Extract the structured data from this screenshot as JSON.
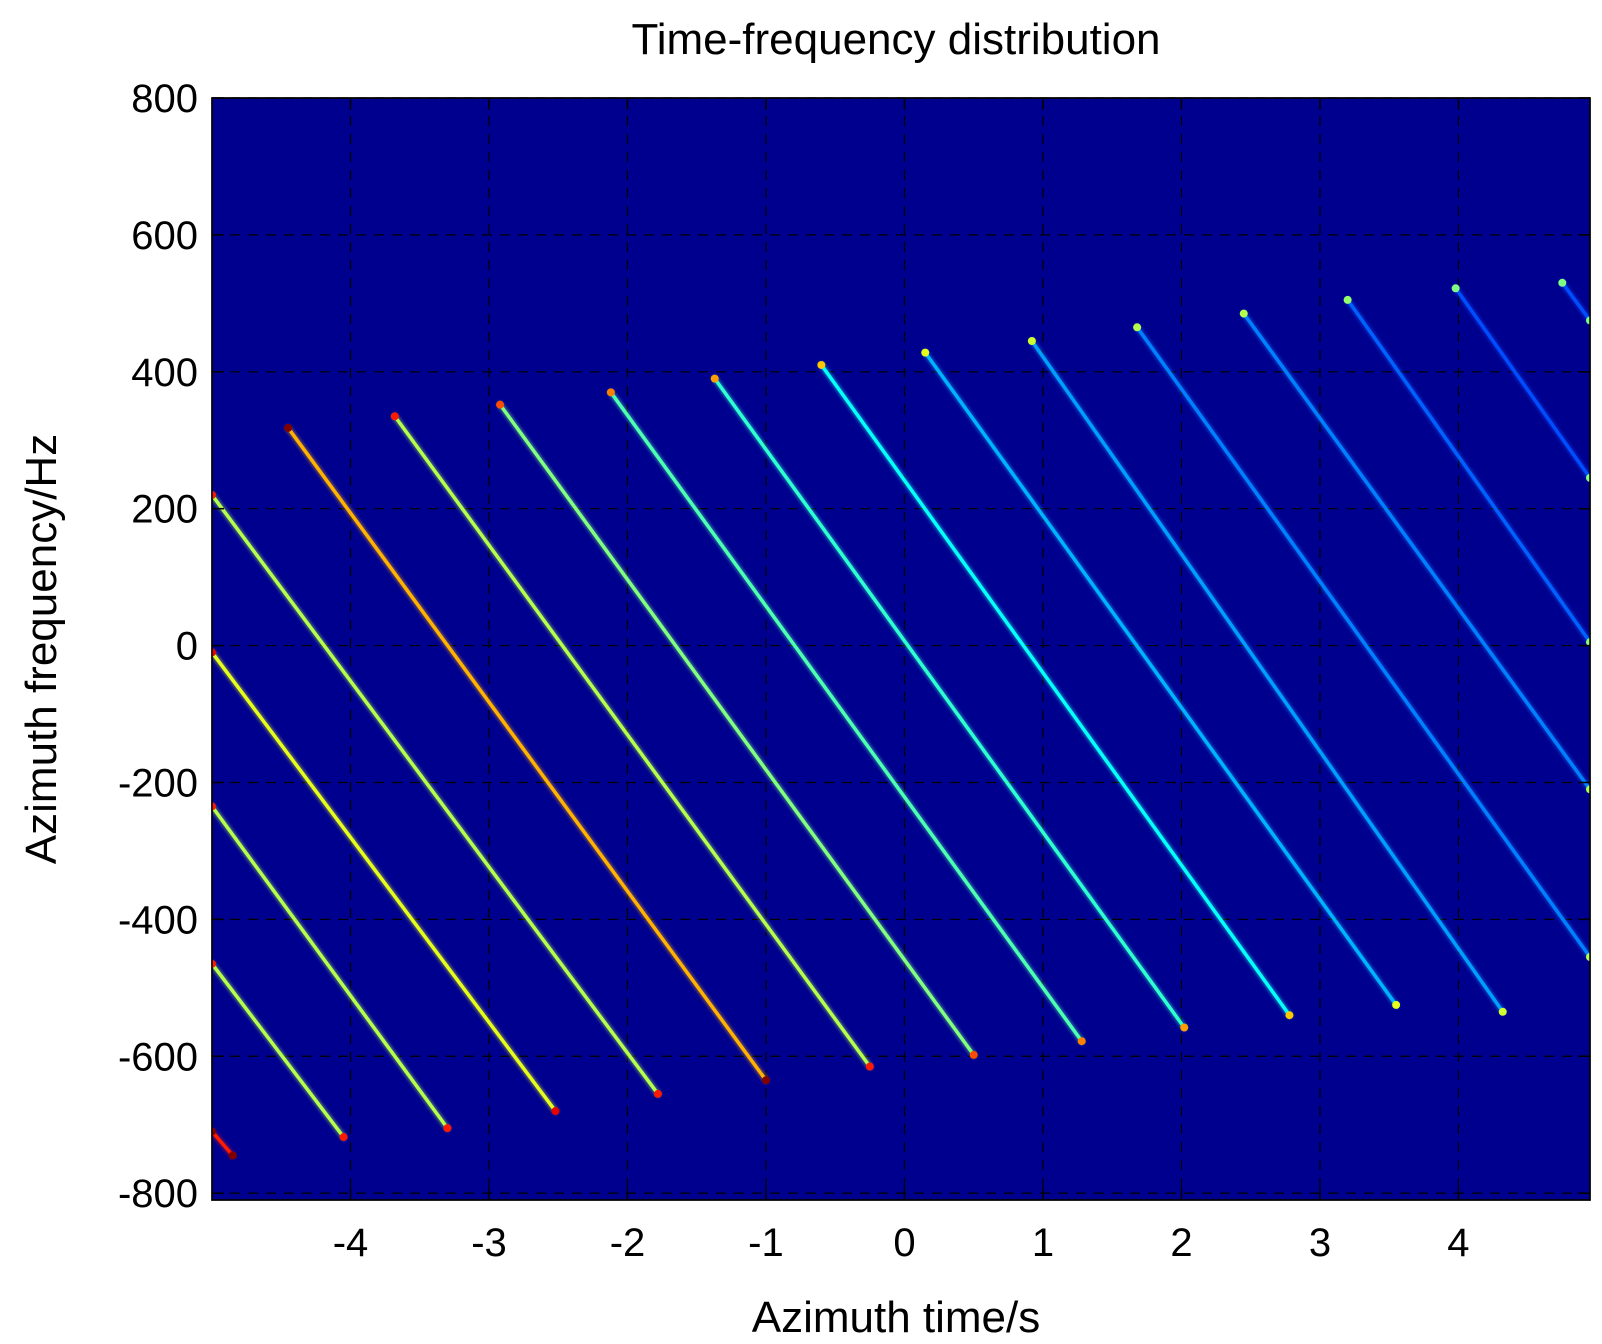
{
  "chart_data": {
    "type": "heatmap",
    "title": "Time-frequency distribution",
    "xlabel": "Azimuth time/s",
    "ylabel": "Azimuth frequency/Hz",
    "xlim": [
      -5,
      4.95
    ],
    "ylim": [
      -810,
      800
    ],
    "xticks": [
      -4,
      -3,
      -2,
      -1,
      0,
      1,
      2,
      3,
      4
    ],
    "yticks": [
      -800,
      -600,
      -400,
      -200,
      0,
      200,
      400,
      600,
      800
    ],
    "x_tick_labels": [
      "-4",
      "-3",
      "-2",
      "-1",
      "0",
      "1",
      "2",
      "3",
      "4"
    ],
    "y_tick_labels": [
      "-800",
      "-600",
      "-400",
      "-200",
      "0",
      "200",
      "400",
      "600",
      "800"
    ],
    "grid": true,
    "grid_style": "dashed",
    "background_color": "#00008f",
    "colormap": "jet",
    "series": [
      {
        "x": [
          -5.0,
          -4.85
        ],
        "y": [
          -710,
          -745
        ],
        "intensity": 0.85
      },
      {
        "x": [
          -5.0,
          -4.05
        ],
        "y": [
          -465,
          -718
        ],
        "intensity": 0.55
      },
      {
        "x": [
          -5.0,
          -3.3
        ],
        "y": [
          -235,
          -705
        ],
        "intensity": 0.55
      },
      {
        "x": [
          -5.0,
          -2.52
        ],
        "y": [
          -10,
          -680
        ],
        "intensity": 0.6
      },
      {
        "x": [
          -5.0,
          -1.78
        ],
        "y": [
          220,
          -655
        ],
        "intensity": 0.55
      },
      {
        "x": [
          -4.45,
          -1.0
        ],
        "y": [
          318,
          -635
        ],
        "intensity": 0.7
      },
      {
        "x": [
          -3.68,
          -0.25
        ],
        "y": [
          335,
          -615
        ],
        "intensity": 0.55
      },
      {
        "x": [
          -2.92,
          0.5
        ],
        "y": [
          352,
          -598
        ],
        "intensity": 0.5
      },
      {
        "x": [
          -2.12,
          1.28
        ],
        "y": [
          370,
          -578
        ],
        "intensity": 0.45
      },
      {
        "x": [
          -1.37,
          2.02
        ],
        "y": [
          390,
          -558
        ],
        "intensity": 0.42
      },
      {
        "x": [
          -0.6,
          2.78
        ],
        "y": [
          410,
          -540
        ],
        "intensity": 0.38
      },
      {
        "x": [
          0.15,
          3.55
        ],
        "y": [
          428,
          -525
        ],
        "intensity": 0.3
      },
      {
        "x": [
          0.92,
          4.32
        ],
        "y": [
          445,
          -535
        ],
        "intensity": 0.28
      },
      {
        "x": [
          1.68,
          4.95
        ],
        "y": [
          465,
          -455
        ],
        "intensity": 0.25
      },
      {
        "x": [
          2.45,
          4.95
        ],
        "y": [
          485,
          -210
        ],
        "intensity": 0.25
      },
      {
        "x": [
          3.2,
          4.95
        ],
        "y": [
          505,
          5
        ],
        "intensity": 0.22
      },
      {
        "x": [
          3.98,
          4.95
        ],
        "y": [
          522,
          245
        ],
        "intensity": 0.2
      },
      {
        "x": [
          4.75,
          4.95
        ],
        "y": [
          530,
          475
        ],
        "intensity": 0.2
      }
    ]
  }
}
